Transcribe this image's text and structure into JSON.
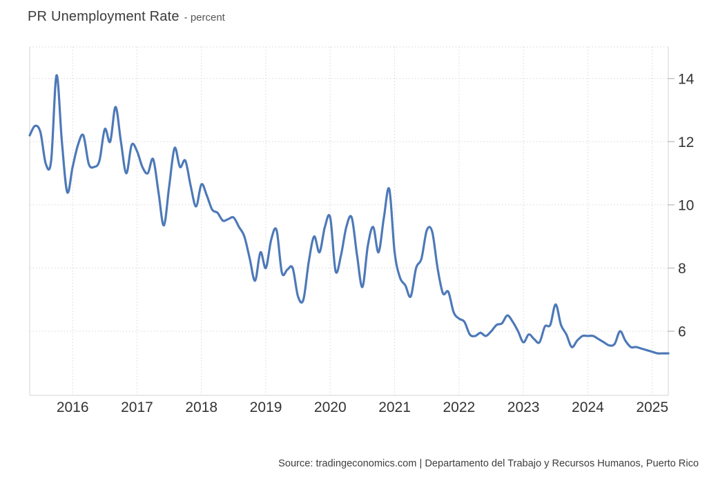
{
  "title": "PR Unemployment Rate",
  "subtitle": "- percent",
  "source": "Source: tradingeconomics.com | Departamento del Trabajo y Recursos Humanos, Puerto Rico",
  "chart_data": {
    "type": "line",
    "title": "PR Unemployment Rate",
    "ylabel": "percent",
    "series_name": "PR Unemployment Rate (percent)",
    "start_month": "2015-05",
    "end_month": "2025-04",
    "frequency": "monthly",
    "values": [
      12.2,
      12.5,
      12.3,
      11.3,
      11.4,
      14.1,
      12.0,
      10.4,
      11.2,
      11.9,
      12.2,
      11.3,
      11.2,
      11.4,
      12.4,
      12.0,
      13.1,
      12.0,
      11.0,
      11.9,
      11.7,
      11.2,
      11.0,
      11.45,
      10.4,
      9.35,
      10.6,
      11.8,
      11.2,
      11.4,
      10.6,
      9.95,
      10.65,
      10.3,
      9.85,
      9.75,
      9.5,
      9.55,
      9.6,
      9.3,
      9.0,
      8.3,
      7.6,
      8.5,
      8.0,
      8.9,
      9.2,
      7.85,
      7.95,
      8.0,
      7.1,
      7.0,
      8.2,
      9.0,
      8.5,
      9.3,
      9.6,
      7.9,
      8.4,
      9.3,
      9.6,
      8.4,
      7.4,
      8.7,
      9.3,
      8.5,
      9.6,
      10.5,
      8.5,
      7.7,
      7.45,
      7.1,
      8.0,
      8.3,
      9.2,
      9.15,
      8.0,
      7.2,
      7.25,
      6.6,
      6.4,
      6.3,
      5.9,
      5.85,
      5.95,
      5.85,
      6.0,
      6.2,
      6.25,
      6.5,
      6.3,
      6.0,
      5.65,
      5.9,
      5.75,
      5.65,
      6.15,
      6.2,
      6.85,
      6.2,
      5.9,
      5.5,
      5.7,
      5.85,
      5.85,
      5.85,
      5.75,
      5.65,
      5.55,
      5.6,
      6.0,
      5.7,
      5.5,
      5.5,
      5.45,
      5.4,
      5.35,
      5.3,
      5.3,
      5.3
    ],
    "x_ticks": [
      2016,
      2017,
      2018,
      2019,
      2020,
      2021,
      2022,
      2023,
      2024,
      2025
    ],
    "y_ticks": [
      6,
      8,
      10,
      12,
      14
    ],
    "ylim": [
      3.97,
      15.0
    ],
    "grid": true,
    "legend": false,
    "line_color": "#4d79b8",
    "grid_color": "#d6d6d6",
    "axis_text_color": "#333333"
  }
}
